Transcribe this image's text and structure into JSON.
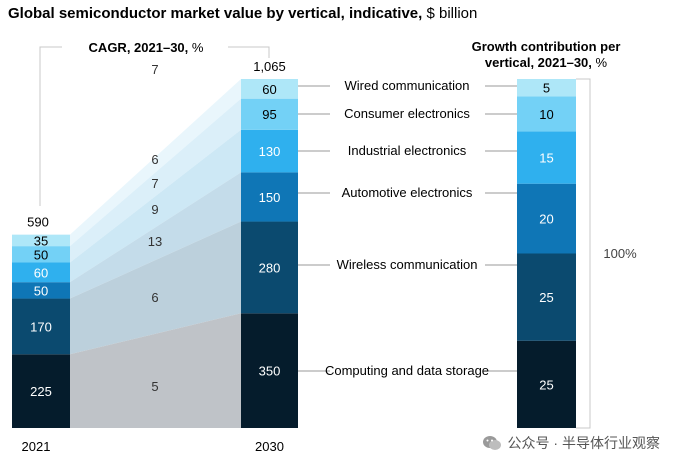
{
  "title_bold": "Global semiconductor market value by vertical, indicative,",
  "title_unit": "$ billion",
  "chart_data": {
    "type": "stacked-bar",
    "title": "Global semiconductor market value by vertical, indicative, $ billion",
    "categories": [
      "2021",
      "2030"
    ],
    "totals": {
      "2021": 590,
      "2030": "1,065"
    },
    "series": [
      {
        "name": "Computing and data storage",
        "values": [
          225,
          350
        ],
        "cagr": "5",
        "growth_contribution": 25,
        "color": "#051c2c"
      },
      {
        "name": "Wireless communication",
        "values": [
          170,
          280
        ],
        "cagr": "6",
        "growth_contribution": 25,
        "color": "#0b4a6f"
      },
      {
        "name": "Automotive electronics",
        "values": [
          50,
          150
        ],
        "cagr": "13",
        "growth_contribution": 20,
        "color": "#0f76b6"
      },
      {
        "name": "Industrial electronics",
        "values": [
          60,
          130
        ],
        "cagr": "9",
        "growth_contribution": 15,
        "color": "#2fb0ee"
      },
      {
        "name": "Consumer electronics",
        "values": [
          50,
          95
        ],
        "cagr": "7",
        "growth_contribution": 10,
        "color": "#73d1f6"
      },
      {
        "name": "Wired communication",
        "values": [
          35,
          60
        ],
        "cagr": "6",
        "growth_contribution": 5,
        "color": "#aee7f8"
      }
    ],
    "cagr_top_label": "7",
    "cagr_header": "CAGR, 2021–30,",
    "cagr_header_unit": "%",
    "growth_header_line1": "Growth contribution per",
    "growth_header_line2": "vertical, 2021–30,",
    "growth_header_unit": "%",
    "growth_total_label": "100%"
  },
  "watermark": "公众号 · 半导体行业观察"
}
